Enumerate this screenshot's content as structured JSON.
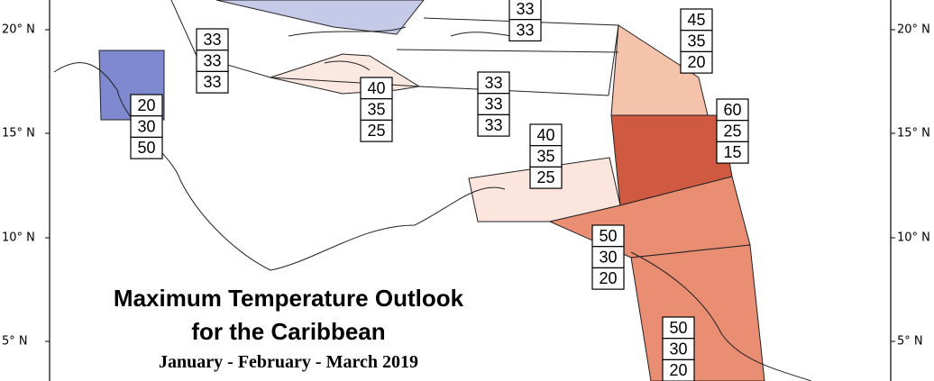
{
  "latitude_labels": {
    "left": [
      "20° N",
      "15° N",
      "10° N",
      "5° N"
    ],
    "right": [
      "20° N",
      "15° N",
      "10° N",
      "5° N"
    ]
  },
  "outlook_boxes": [
    {
      "values": [
        33,
        33
      ]
    },
    {
      "values": [
        33,
        33,
        33
      ]
    },
    {
      "values": [
        20,
        30,
        50
      ]
    },
    {
      "values": [
        40,
        35,
        25
      ]
    },
    {
      "values": [
        33,
        33,
        33
      ]
    },
    {
      "values": [
        40,
        35,
        25
      ]
    },
    {
      "values": [
        45,
        35,
        20
      ]
    },
    {
      "values": [
        60,
        25,
        15
      ]
    },
    {
      "values": [
        50,
        30,
        20
      ]
    },
    {
      "values": [
        50,
        30,
        20
      ]
    }
  ],
  "title": {
    "line1": "Maximum Temperature Outlook",
    "line2": "for the Caribbean"
  },
  "subtitle": "January - February - March 2019"
}
